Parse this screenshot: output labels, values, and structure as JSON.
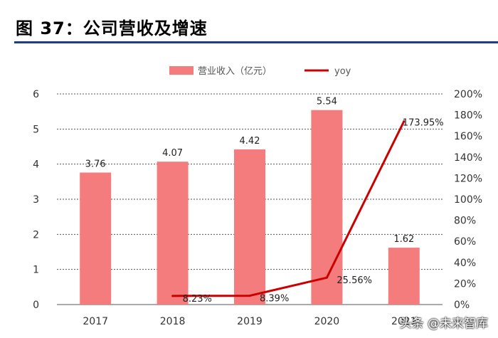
{
  "title": "图 37：公司营收及增速",
  "watermark": "头条 @未来智库",
  "chart_data": {
    "type": "bar",
    "categories": [
      "2017",
      "2018",
      "2019",
      "2020",
      "2021"
    ],
    "series": [
      {
        "name": "营业收入（亿元）",
        "type": "bar",
        "axis": "left",
        "values": [
          3.76,
          4.07,
          4.42,
          5.54,
          1.62
        ],
        "labels": [
          "3.76",
          "4.07",
          "4.42",
          "5.54",
          "1.62"
        ],
        "color": "#f47c7c"
      },
      {
        "name": "yoy",
        "type": "line",
        "axis": "right",
        "values": [
          null,
          8.23,
          8.39,
          25.56,
          173.95
        ],
        "labels": [
          "",
          "8.23%",
          "8.39%",
          "25.56%",
          "173.95%"
        ],
        "color": "#cc0000"
      }
    ],
    "yleft": {
      "min": 0,
      "max": 6,
      "ticks": [
        "0",
        "1",
        "2",
        "3",
        "4",
        "5",
        "6"
      ]
    },
    "yright": {
      "min": 0,
      "max": 200,
      "ticks": [
        "0%",
        "20%",
        "40%",
        "60%",
        "80%",
        "100%",
        "120%",
        "140%",
        "160%",
        "180%",
        "200%"
      ]
    },
    "legend": "top",
    "grid": true
  }
}
